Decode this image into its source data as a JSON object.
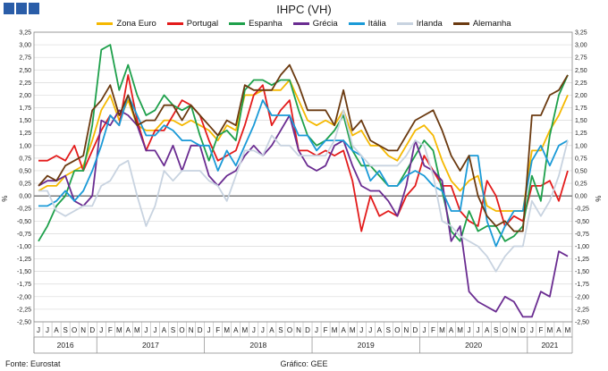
{
  "header": {
    "title": "IHPC (VH)"
  },
  "footer": {
    "source": "Fonte: Eurostat",
    "credit": "Gráfico: GEE"
  },
  "chart_data": {
    "type": "line",
    "title": "IHPC (VH)",
    "ylabel_left": "%",
    "ylabel_right": "%",
    "ylim": [
      -2.5,
      3.25
    ],
    "ytick_step": 0.25,
    "legend_position": "top",
    "grid": "horizontal",
    "x_month_labels": [
      "J",
      "J",
      "A",
      "S",
      "O",
      "N",
      "D",
      "J",
      "F",
      "M",
      "A",
      "M",
      "J",
      "J",
      "A",
      "S",
      "O",
      "N",
      "D",
      "J",
      "F",
      "M",
      "A",
      "M",
      "J",
      "J",
      "A",
      "S",
      "O",
      "N",
      "D",
      "J",
      "F",
      "M",
      "A",
      "M",
      "J",
      "J",
      "A",
      "S",
      "O",
      "N",
      "D",
      "J",
      "F",
      "M",
      "A",
      "M",
      "J",
      "J",
      "A",
      "S",
      "O",
      "N",
      "D",
      "J",
      "F",
      "M",
      "A",
      "M"
    ],
    "x_year_labels": [
      {
        "label": "2016",
        "start": 0,
        "end": 6
      },
      {
        "label": "2017",
        "start": 7,
        "end": 18
      },
      {
        "label": "2018",
        "start": 19,
        "end": 30
      },
      {
        "label": "2019",
        "start": 31,
        "end": 42
      },
      {
        "label": "2020",
        "start": 43,
        "end": 54
      },
      {
        "label": "2021",
        "start": 55,
        "end": 59
      }
    ],
    "series": [
      {
        "name": "Zona Euro",
        "color": "#f5b800",
        "values": [
          0.1,
          0.2,
          0.2,
          0.4,
          0.5,
          0.6,
          1.1,
          1.7,
          2.0,
          1.5,
          1.9,
          1.4,
          1.3,
          1.3,
          1.5,
          1.5,
          1.4,
          1.5,
          1.4,
          1.3,
          1.1,
          1.4,
          1.3,
          2.0,
          2.0,
          2.1,
          2.1,
          2.1,
          2.3,
          1.9,
          1.5,
          1.4,
          1.5,
          1.4,
          1.7,
          1.2,
          1.3,
          1.0,
          1.0,
          0.8,
          0.7,
          1.0,
          1.3,
          1.4,
          1.2,
          0.7,
          0.3,
          0.1,
          0.3,
          0.4,
          -0.2,
          -0.3,
          -0.3,
          -0.3,
          -0.3,
          0.9,
          0.9,
          1.3,
          1.6,
          2.0
        ]
      },
      {
        "name": "Portugal",
        "color": "#e31b1b",
        "values": [
          0.7,
          0.7,
          0.8,
          0.7,
          1.0,
          0.5,
          0.9,
          1.3,
          1.6,
          1.4,
          2.4,
          1.5,
          0.9,
          1.3,
          1.3,
          1.6,
          1.9,
          1.8,
          1.6,
          1.1,
          0.7,
          0.8,
          0.9,
          1.4,
          2.0,
          2.2,
          1.4,
          1.7,
          1.9,
          0.9,
          0.9,
          0.8,
          0.9,
          0.8,
          0.9,
          0.3,
          -0.7,
          0.0,
          -0.4,
          -0.3,
          -0.4,
          0.0,
          0.2,
          0.8,
          0.5,
          0.2,
          0.2,
          -0.3,
          -0.5,
          -0.6,
          0.3,
          0.0,
          -0.6,
          -0.4,
          -0.5,
          0.2,
          0.2,
          0.3,
          -0.1,
          0.5
        ]
      },
      {
        "name": "Espanha",
        "color": "#1ea04b",
        "values": [
          -0.9,
          -0.6,
          -0.2,
          0.0,
          0.5,
          0.5,
          1.4,
          2.9,
          3.0,
          2.1,
          2.6,
          2.0,
          1.6,
          1.7,
          2.0,
          1.8,
          1.7,
          1.8,
          1.2,
          0.7,
          1.2,
          1.3,
          1.1,
          2.1,
          2.3,
          2.3,
          2.2,
          2.3,
          2.3,
          1.7,
          1.2,
          1.0,
          1.1,
          1.3,
          1.6,
          0.9,
          0.6,
          0.6,
          0.4,
          0.2,
          0.2,
          0.5,
          0.8,
          1.1,
          0.9,
          0.1,
          -0.7,
          -0.9,
          -0.3,
          -0.7,
          -0.6,
          -0.6,
          -0.9,
          -0.8,
          -0.6,
          0.4,
          -0.1,
          1.2,
          2.0,
          2.4
        ]
      },
      {
        "name": "Grécia",
        "color": "#6a2c91",
        "values": [
          0.2,
          0.3,
          0.3,
          0.4,
          -0.1,
          -0.2,
          0.0,
          1.5,
          1.4,
          1.7,
          1.6,
          1.4,
          0.9,
          0.9,
          0.6,
          1.0,
          0.5,
          1.0,
          1.0,
          0.4,
          0.2,
          0.4,
          0.5,
          0.8,
          1.0,
          0.8,
          1.0,
          1.3,
          1.6,
          0.9,
          0.6,
          0.5,
          0.6,
          1.0,
          1.1,
          0.6,
          0.2,
          0.1,
          0.1,
          -0.1,
          -0.4,
          0.2,
          1.1,
          0.6,
          0.5,
          0.3,
          -0.9,
          -0.6,
          -1.9,
          -2.1,
          -2.2,
          -2.3,
          -2.0,
          -2.1,
          -2.4,
          -2.4,
          -1.9,
          -2.0,
          -1.1,
          -1.2
        ]
      },
      {
        "name": "Itália",
        "color": "#1a9ad7",
        "values": [
          -0.2,
          -0.2,
          -0.1,
          0.1,
          -0.1,
          0.1,
          0.5,
          1.0,
          1.6,
          1.4,
          2.0,
          1.6,
          1.2,
          1.2,
          1.4,
          1.3,
          1.1,
          1.1,
          1.0,
          1.0,
          0.5,
          0.9,
          0.6,
          1.0,
          1.4,
          1.9,
          1.6,
          1.6,
          1.6,
          1.2,
          1.2,
          0.9,
          1.1,
          1.1,
          1.1,
          0.9,
          0.8,
          0.3,
          0.5,
          0.2,
          0.2,
          0.4,
          0.5,
          0.4,
          0.2,
          0.1,
          -0.3,
          -0.3,
          0.8,
          0.8,
          -0.5,
          -1.0,
          -0.6,
          -0.3,
          -0.3,
          0.7,
          1.0,
          0.6,
          1.0,
          1.1
        ]
      },
      {
        "name": "Irlanda",
        "color": "#c8d3e0",
        "values": [
          0.1,
          0.1,
          -0.3,
          -0.4,
          -0.3,
          -0.2,
          -0.2,
          0.2,
          0.3,
          0.6,
          0.7,
          0.0,
          -0.6,
          -0.2,
          0.5,
          0.3,
          0.5,
          0.5,
          0.5,
          0.3,
          0.2,
          -0.1,
          0.4,
          0.9,
          0.9,
          0.8,
          1.2,
          1.0,
          1.0,
          0.8,
          0.8,
          0.8,
          0.8,
          1.1,
          1.7,
          1.0,
          0.8,
          0.6,
          0.6,
          0.6,
          0.6,
          0.8,
          1.1,
          1.0,
          0.4,
          -0.5,
          -0.6,
          -0.8,
          -0.9,
          -1.0,
          -1.2,
          -1.5,
          -1.2,
          -1.0,
          -1.0,
          -0.1,
          -0.4,
          -0.1,
          0.4,
          1.1
        ]
      },
      {
        "name": "Alemanha",
        "color": "#6b3a10",
        "values": [
          0.2,
          0.4,
          0.3,
          0.6,
          0.7,
          0.8,
          1.7,
          1.9,
          2.2,
          1.6,
          2.0,
          1.4,
          1.5,
          1.5,
          1.8,
          1.8,
          1.5,
          1.8,
          1.6,
          1.4,
          1.2,
          1.5,
          1.4,
          2.2,
          2.1,
          2.1,
          2.1,
          2.4,
          2.6,
          2.2,
          1.7,
          1.7,
          1.7,
          1.4,
          2.1,
          1.3,
          1.5,
          1.1,
          1.0,
          0.9,
          0.9,
          1.2,
          1.5,
          1.6,
          1.7,
          1.3,
          0.8,
          0.5,
          0.8,
          0.0,
          -0.4,
          -0.6,
          -0.5,
          -0.7,
          -0.7,
          1.6,
          1.6,
          2.0,
          2.1,
          2.4
        ]
      }
    ]
  }
}
